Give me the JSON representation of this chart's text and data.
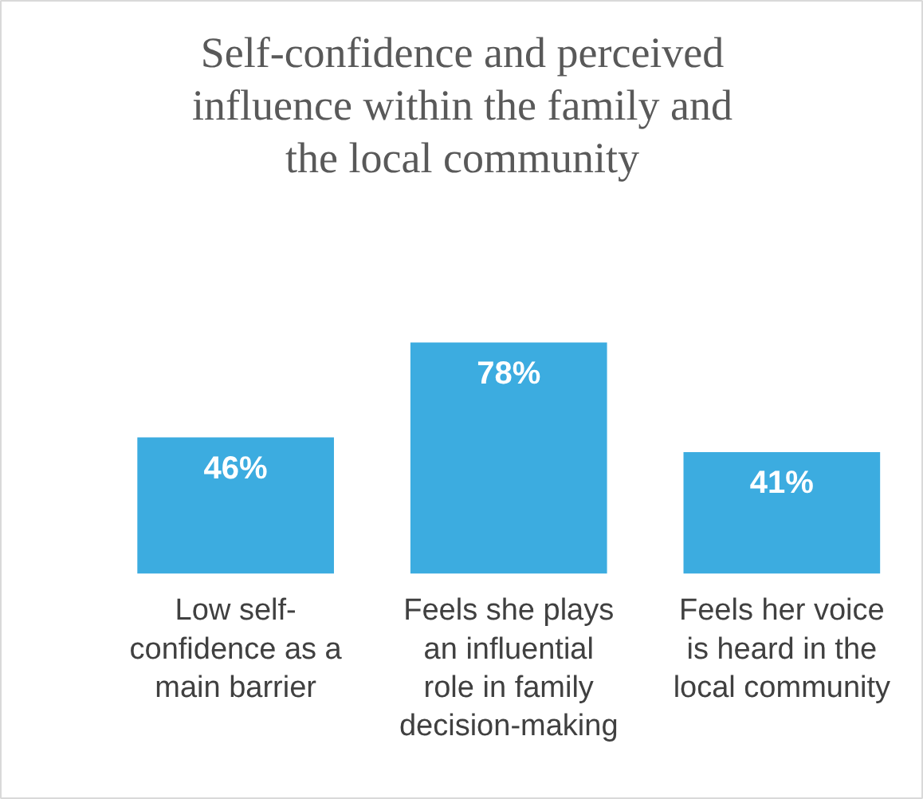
{
  "chart_data": {
    "type": "bar",
    "title": "Self-confidence and perceived influence within the family and the local community",
    "categories": [
      "Low self-confidence as a main barrier",
      "Feels she plays an influential role in family decision-making",
      "Feels her voice is heard in the local community"
    ],
    "values": [
      46,
      78,
      41
    ],
    "color": "#3cace0",
    "value_labels": [
      "46%",
      "78%",
      "41%"
    ]
  }
}
